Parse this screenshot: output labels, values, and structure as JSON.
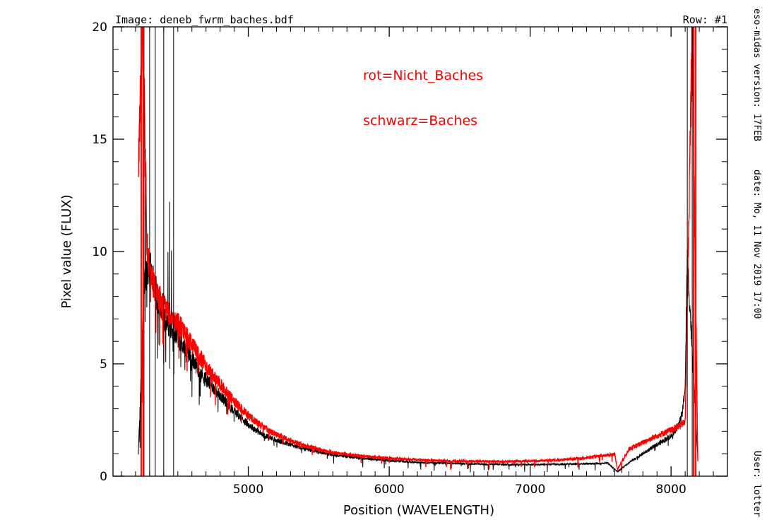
{
  "header": {
    "image_label": "Image:  deneb_fwrm_baches.bdf",
    "row_label": "Row:  #1"
  },
  "side_info": {
    "version": "eso-midas version: 17FEB",
    "date": "date: Mo, 11 Nov 2019 17:00",
    "user": "User: lotter"
  },
  "colors": {
    "background": "#ffffff",
    "axis": "#000000",
    "black_series": "#000000",
    "red_series": "#ff0000",
    "annotation": "#ff0000"
  },
  "chart_data": {
    "type": "line",
    "title": "",
    "xlabel": "Position (WAVELENGTH)",
    "ylabel": "Pixel value (FLUX)",
    "xlim": [
      4040,
      8400
    ],
    "ylim": [
      0,
      20
    ],
    "x_ticks": [
      5000,
      6000,
      7000,
      8000
    ],
    "x_tick_labels": [
      "5000",
      "6000",
      "7000",
      "8000"
    ],
    "y_ticks": [
      0,
      5,
      10,
      15,
      20
    ],
    "y_tick_labels": [
      "0",
      "5",
      "10",
      "15",
      "20"
    ],
    "grid": false,
    "annotations": [
      "rot=Nicht_Baches",
      "schwarz=Baches"
    ],
    "series": [
      {
        "name": "Baches",
        "color": "#000000",
        "start": 4220,
        "end": 8190,
        "x": [
          4220,
          4260,
          4300,
          4350,
          4400,
          4450,
          4500,
          4600,
          4700,
          4800,
          4900,
          5000,
          5100,
          5200,
          5400,
          5600,
          5800,
          6000,
          6200,
          6400,
          6600,
          6800,
          7000,
          7200,
          7400,
          7550,
          7620,
          7700,
          7800,
          7900,
          8000,
          8050,
          8080,
          8100,
          8115,
          8190
        ],
        "y": [
          1.0,
          8.5,
          9.5,
          8.0,
          7.0,
          6.6,
          6.2,
          5.2,
          4.3,
          3.6,
          2.9,
          2.3,
          1.85,
          1.6,
          1.2,
          0.95,
          0.8,
          0.7,
          0.62,
          0.58,
          0.55,
          0.52,
          0.52,
          0.53,
          0.55,
          0.58,
          0.2,
          0.6,
          1.0,
          1.4,
          1.8,
          2.2,
          2.8,
          4.0,
          9.8,
          0.8
        ]
      },
      {
        "name": "Nicht_Baches",
        "color": "#ff0000",
        "start": 4220,
        "end": 8190,
        "x": [
          4220,
          4250,
          4280,
          4300,
          4350,
          4400,
          4450,
          4500,
          4600,
          4700,
          4800,
          4900,
          5000,
          5100,
          5200,
          5400,
          5600,
          5800,
          6000,
          6200,
          6400,
          6600,
          6800,
          7000,
          7200,
          7400,
          7600,
          7620,
          7700,
          7800,
          7900,
          8000,
          8100,
          8150,
          8190
        ],
        "y": [
          14.0,
          20.0,
          10.5,
          9.0,
          8.2,
          7.6,
          7.2,
          6.8,
          5.9,
          4.9,
          4.1,
          3.3,
          2.7,
          2.2,
          1.85,
          1.35,
          1.05,
          0.9,
          0.8,
          0.73,
          0.68,
          0.66,
          0.65,
          0.67,
          0.72,
          0.82,
          0.98,
          0.3,
          1.2,
          1.5,
          1.8,
          2.05,
          2.4,
          20.0,
          0.5
        ]
      }
    ]
  }
}
